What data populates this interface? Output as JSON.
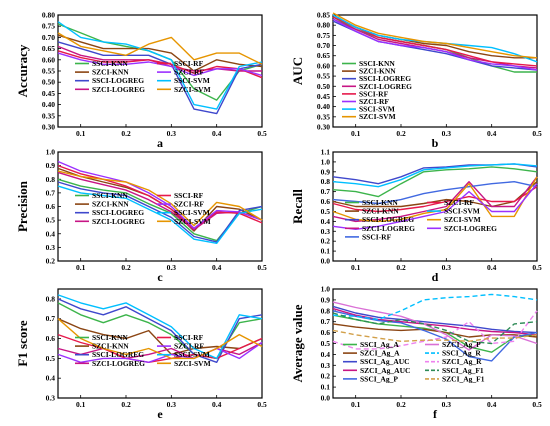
{
  "chart_data": [
    {
      "type": "line",
      "panel_letter": "a",
      "ylabel": "Accuracy",
      "x": [
        0.05,
        0.1,
        0.15,
        0.2,
        0.25,
        0.3,
        0.35,
        0.4,
        0.45,
        0.5
      ],
      "xlim": [
        0.05,
        0.5
      ],
      "ylim": [
        0.3,
        0.8
      ],
      "xticks": [
        "0.1",
        "0.2",
        "0.3",
        "0.4",
        "0.5"
      ],
      "yticks": [
        "0.30",
        "0.35",
        "0.40",
        "0.45",
        "0.50",
        "0.55",
        "0.60",
        "0.65",
        "0.70",
        "0.75",
        "0.80"
      ],
      "series": [
        {
          "name": "SSCI-KNN",
          "color": "#3cb44b",
          "values": [
            0.76,
            0.72,
            0.68,
            0.66,
            0.64,
            0.6,
            0.47,
            0.42,
            0.55,
            0.58
          ]
        },
        {
          "name": "SZCI-KNN",
          "color": "#8b4513",
          "values": [
            0.71,
            0.68,
            0.65,
            0.65,
            0.65,
            0.63,
            0.55,
            0.6,
            0.58,
            0.57
          ]
        },
        {
          "name": "SSCI-LOGREG",
          "color": "#3f48cc",
          "values": [
            0.68,
            0.65,
            0.62,
            0.62,
            0.62,
            0.58,
            0.38,
            0.36,
            0.56,
            0.58
          ]
        },
        {
          "name": "SZCI-LOGREG",
          "color": "#c71585",
          "values": [
            0.66,
            0.62,
            0.6,
            0.6,
            0.6,
            0.57,
            0.55,
            0.56,
            0.55,
            0.55
          ]
        },
        {
          "name": "SSCI-RF",
          "color": "#e6194b",
          "values": [
            0.64,
            0.61,
            0.59,
            0.59,
            0.6,
            0.58,
            0.54,
            0.57,
            0.56,
            0.52
          ]
        },
        {
          "name": "SZCI-RF",
          "color": "#9b30ff",
          "values": [
            0.63,
            0.6,
            0.58,
            0.58,
            0.59,
            0.57,
            0.53,
            0.56,
            0.56,
            0.53
          ]
        },
        {
          "name": "SSCI-SVM",
          "color": "#00bfff",
          "values": [
            0.77,
            0.7,
            0.68,
            0.67,
            0.64,
            0.6,
            0.4,
            0.38,
            0.57,
            0.59
          ]
        },
        {
          "name": "SZCI-SVM",
          "color": "#e69500",
          "values": [
            0.72,
            0.66,
            0.64,
            0.62,
            0.67,
            0.7,
            0.6,
            0.63,
            0.63,
            0.58
          ]
        }
      ]
    },
    {
      "type": "line",
      "panel_letter": "b",
      "ylabel": "AUC",
      "x": [
        0.05,
        0.1,
        0.15,
        0.2,
        0.25,
        0.3,
        0.35,
        0.4,
        0.45,
        0.5
      ],
      "xlim": [
        0.05,
        0.5
      ],
      "ylim": [
        0.3,
        0.85
      ],
      "xticks": [
        "0.1",
        "0.2",
        "0.3",
        "0.4",
        "0.5"
      ],
      "yticks": [
        "0.30",
        "0.35",
        "0.40",
        "0.45",
        "0.50",
        "0.55",
        "0.60",
        "0.65",
        "0.70",
        "0.75",
        "0.80",
        "0.85"
      ],
      "series": [
        {
          "name": "SSCI-KNN",
          "color": "#3cb44b",
          "values": [
            0.84,
            0.78,
            0.74,
            0.72,
            0.7,
            0.68,
            0.64,
            0.6,
            0.57,
            0.57
          ]
        },
        {
          "name": "SZCI-KNN",
          "color": "#8b4513",
          "values": [
            0.85,
            0.79,
            0.75,
            0.73,
            0.71,
            0.7,
            0.67,
            0.65,
            0.64,
            0.64
          ]
        },
        {
          "name": "SSCI-LOGREG",
          "color": "#3f48cc",
          "values": [
            0.82,
            0.77,
            0.72,
            0.7,
            0.68,
            0.66,
            0.63,
            0.6,
            0.59,
            0.58
          ]
        },
        {
          "name": "SZCI-LOGREG",
          "color": "#c71585",
          "values": [
            0.83,
            0.78,
            0.73,
            0.71,
            0.69,
            0.67,
            0.64,
            0.62,
            0.6,
            0.59
          ]
        },
        {
          "name": "SSCI-RF",
          "color": "#e6194b",
          "values": [
            0.84,
            0.79,
            0.74,
            0.72,
            0.7,
            0.68,
            0.65,
            0.62,
            0.61,
            0.6
          ]
        },
        {
          "name": "SZCI-RF",
          "color": "#9b30ff",
          "values": [
            0.83,
            0.77,
            0.72,
            0.7,
            0.69,
            0.67,
            0.63,
            0.61,
            0.6,
            0.58
          ]
        },
        {
          "name": "SSCI-SVM",
          "color": "#00bfff",
          "values": [
            0.85,
            0.79,
            0.75,
            0.73,
            0.72,
            0.71,
            0.7,
            0.69,
            0.66,
            0.62
          ]
        },
        {
          "name": "SZCI-SVM",
          "color": "#e69500",
          "values": [
            0.86,
            0.8,
            0.76,
            0.74,
            0.72,
            0.71,
            0.69,
            0.67,
            0.65,
            0.64
          ]
        }
      ]
    },
    {
      "type": "line",
      "panel_letter": "c",
      "ylabel": "Precision",
      "x": [
        0.05,
        0.1,
        0.15,
        0.2,
        0.25,
        0.3,
        0.35,
        0.4,
        0.45,
        0.5
      ],
      "xlim": [
        0.05,
        0.5
      ],
      "ylim": [
        0.2,
        1.0
      ],
      "xticks": [
        "0.1",
        "0.2",
        "0.3",
        "0.4",
        "0.5"
      ],
      "yticks": [
        "0.2",
        "0.3",
        "0.4",
        "0.5",
        "0.6",
        "0.7",
        "0.8",
        "0.9",
        "1.0"
      ],
      "series": [
        {
          "name": "SSCI-KNN",
          "color": "#3cb44b",
          "values": [
            0.8,
            0.75,
            0.72,
            0.7,
            0.62,
            0.55,
            0.4,
            0.35,
            0.55,
            0.6
          ]
        },
        {
          "name": "SZCI-KNN",
          "color": "#8b4513",
          "values": [
            0.88,
            0.82,
            0.78,
            0.74,
            0.68,
            0.58,
            0.42,
            0.6,
            0.58,
            0.5
          ]
        },
        {
          "name": "SSCI-LOGREG",
          "color": "#3f48cc",
          "values": [
            0.78,
            0.73,
            0.7,
            0.68,
            0.6,
            0.52,
            0.38,
            0.34,
            0.57,
            0.6
          ]
        },
        {
          "name": "SZCI-LOGREG",
          "color": "#c71585",
          "values": [
            0.85,
            0.8,
            0.76,
            0.72,
            0.65,
            0.56,
            0.43,
            0.55,
            0.56,
            0.5
          ]
        },
        {
          "name": "SSCI-RF",
          "color": "#e6194b",
          "values": [
            0.9,
            0.84,
            0.8,
            0.75,
            0.68,
            0.58,
            0.44,
            0.56,
            0.55,
            0.48
          ]
        },
        {
          "name": "SZCI-RF",
          "color": "#9b30ff",
          "values": [
            0.93,
            0.86,
            0.82,
            0.78,
            0.7,
            0.6,
            0.44,
            0.57,
            0.56,
            0.5
          ]
        },
        {
          "name": "SSCI-SVM",
          "color": "#00bfff",
          "values": [
            0.75,
            0.7,
            0.68,
            0.66,
            0.58,
            0.5,
            0.36,
            0.33,
            0.55,
            0.58
          ]
        },
        {
          "name": "SZCI-SVM",
          "color": "#e69500",
          "values": [
            0.86,
            0.82,
            0.8,
            0.78,
            0.72,
            0.62,
            0.46,
            0.63,
            0.6,
            0.5
          ]
        }
      ]
    },
    {
      "type": "line",
      "panel_letter": "d",
      "ylabel": "Recall",
      "x": [
        0.05,
        0.1,
        0.15,
        0.2,
        0.25,
        0.3,
        0.35,
        0.4,
        0.45,
        0.5
      ],
      "xlim": [
        0.05,
        0.5
      ],
      "ylim": [
        0.0,
        1.1
      ],
      "xticks": [
        "0.1",
        "0.2",
        "0.3",
        "0.4",
        "0.5"
      ],
      "yticks": [
        "0.0",
        "0.1",
        "0.2",
        "0.3",
        "0.4",
        "0.5",
        "0.6",
        "0.7",
        "0.8",
        "0.9",
        "1.0",
        "1.1"
      ],
      "series": [
        {
          "name": "SSCI-KNN",
          "color": "#3cb44b",
          "values": [
            0.72,
            0.7,
            0.65,
            0.78,
            0.9,
            0.92,
            0.93,
            0.95,
            0.93,
            0.9
          ]
        },
        {
          "name": "SZCI-KNN",
          "color": "#8b4513",
          "values": [
            0.6,
            0.55,
            0.55,
            0.55,
            0.58,
            0.62,
            0.6,
            0.55,
            0.6,
            0.8
          ]
        },
        {
          "name": "SSCI-LOGREG",
          "color": "#3f48cc",
          "values": [
            0.85,
            0.82,
            0.78,
            0.85,
            0.94,
            0.95,
            0.97,
            0.97,
            0.98,
            0.95
          ]
        },
        {
          "name": "SZCI-LOGREG",
          "color": "#c71585",
          "values": [
            0.45,
            0.4,
            0.42,
            0.45,
            0.5,
            0.55,
            0.8,
            0.55,
            0.55,
            0.85
          ]
        },
        {
          "name": "SSCI-RF",
          "color": "#4169e1",
          "values": [
            0.62,
            0.6,
            0.58,
            0.62,
            0.68,
            0.72,
            0.75,
            0.78,
            0.8,
            0.75
          ]
        },
        {
          "name": "SZCI-RF",
          "color": "#e6194b",
          "values": [
            0.58,
            0.52,
            0.5,
            0.52,
            0.55,
            0.6,
            0.65,
            0.6,
            0.6,
            0.75
          ]
        },
        {
          "name": "SSCI-SVM",
          "color": "#00bfff",
          "values": [
            0.8,
            0.78,
            0.75,
            0.82,
            0.92,
            0.94,
            0.96,
            0.97,
            0.98,
            0.96
          ]
        },
        {
          "name": "SZCI-SVM",
          "color": "#e69500",
          "values": [
            0.5,
            0.42,
            0.4,
            0.42,
            0.48,
            0.52,
            0.78,
            0.45,
            0.45,
            0.85
          ]
        },
        {
          "name": "SZCI-LOGREG",
          "color": "#9b30ff",
          "values": [
            0.35,
            0.32,
            0.35,
            0.4,
            0.45,
            0.5,
            0.7,
            0.5,
            0.5,
            0.78
          ]
        }
      ]
    },
    {
      "type": "line",
      "panel_letter": "e",
      "ylabel": "F1 score",
      "x": [
        0.05,
        0.1,
        0.15,
        0.2,
        0.25,
        0.3,
        0.35,
        0.4,
        0.45,
        0.5
      ],
      "xlim": [
        0.05,
        0.5
      ],
      "ylim": [
        0.3,
        0.85
      ],
      "xticks": [
        "0.1",
        "0.2",
        "0.3",
        "0.4",
        "0.5"
      ],
      "yticks": [
        "0.3",
        "0.4",
        "0.5",
        "0.6",
        "0.7",
        "0.8"
      ],
      "series": [
        {
          "name": "SSCI-KNN",
          "color": "#3cb44b",
          "values": [
            0.78,
            0.72,
            0.68,
            0.72,
            0.68,
            0.62,
            0.52,
            0.5,
            0.68,
            0.7
          ]
        },
        {
          "name": "SZCI-KNN",
          "color": "#8b4513",
          "values": [
            0.7,
            0.65,
            0.62,
            0.6,
            0.64,
            0.52,
            0.55,
            0.56,
            0.55,
            0.6
          ]
        },
        {
          "name": "SSCI-LOGREG",
          "color": "#3f48cc",
          "values": [
            0.8,
            0.75,
            0.72,
            0.76,
            0.7,
            0.64,
            0.52,
            0.48,
            0.7,
            0.72
          ]
        },
        {
          "name": "SZCI-LOGREG",
          "color": "#c71585",
          "values": [
            0.55,
            0.52,
            0.55,
            0.5,
            0.52,
            0.55,
            0.5,
            0.55,
            0.52,
            0.58
          ]
        },
        {
          "name": "SSCI-RF",
          "color": "#e6194b",
          "values": [
            0.62,
            0.58,
            0.55,
            0.5,
            0.48,
            0.5,
            0.52,
            0.5,
            0.55,
            0.6
          ]
        },
        {
          "name": "SZCI-RF",
          "color": "#9b30ff",
          "values": [
            0.52,
            0.48,
            0.5,
            0.5,
            0.48,
            0.52,
            0.5,
            0.55,
            0.5,
            0.58
          ]
        },
        {
          "name": "SSCI-SVM",
          "color": "#00bfff",
          "values": [
            0.82,
            0.78,
            0.75,
            0.78,
            0.72,
            0.66,
            0.55,
            0.5,
            0.72,
            0.7
          ]
        },
        {
          "name": "SZCI-SVM",
          "color": "#e69500",
          "values": [
            0.7,
            0.6,
            0.55,
            0.52,
            0.55,
            0.5,
            0.5,
            0.55,
            0.62,
            0.56
          ]
        }
      ]
    },
    {
      "type": "line",
      "panel_letter": "f",
      "ylabel": "Average value",
      "x": [
        0.05,
        0.1,
        0.15,
        0.2,
        0.25,
        0.3,
        0.35,
        0.4,
        0.45,
        0.5
      ],
      "xlim": [
        0.05,
        0.5
      ],
      "ylim": [
        0.0,
        1.0
      ],
      "xticks": [
        "0.1",
        "0.2",
        "0.3",
        "0.4",
        "0.5"
      ],
      "yticks": [
        "0.0",
        "0.1",
        "0.2",
        "0.3",
        "0.4",
        "0.5",
        "0.6",
        "0.7",
        "0.8",
        "0.9",
        "1.0"
      ],
      "series": [
        {
          "name": "SSCI_Ag_A",
          "color": "#3cb44b",
          "dash": false,
          "values": [
            0.76,
            0.72,
            0.68,
            0.66,
            0.64,
            0.6,
            0.47,
            0.42,
            0.56,
            0.58
          ]
        },
        {
          "name": "SZCI_Ag_A",
          "color": "#8b4513",
          "dash": false,
          "values": [
            0.68,
            0.65,
            0.63,
            0.62,
            0.63,
            0.6,
            0.56,
            0.58,
            0.58,
            0.56
          ]
        },
        {
          "name": "SSCI_Ag_AUC",
          "color": "#3f48cc",
          "dash": false,
          "values": [
            0.84,
            0.78,
            0.74,
            0.72,
            0.7,
            0.68,
            0.66,
            0.63,
            0.61,
            0.6
          ]
        },
        {
          "name": "SZCI_Ag_AUC",
          "color": "#c71585",
          "dash": false,
          "values": [
            0.82,
            0.76,
            0.72,
            0.7,
            0.68,
            0.66,
            0.63,
            0.61,
            0.6,
            0.58
          ]
        },
        {
          "name": "SSCI_Ag_P",
          "color": "#4169e1",
          "dash": false,
          "values": [
            0.8,
            0.75,
            0.71,
            0.69,
            0.62,
            0.54,
            0.38,
            0.34,
            0.56,
            0.6
          ]
        },
        {
          "name": "SZCI_Ag_P",
          "color": "#da70d6",
          "dash": false,
          "values": [
            0.88,
            0.83,
            0.79,
            0.75,
            0.68,
            0.58,
            0.44,
            0.58,
            0.57,
            0.5
          ]
        },
        {
          "name": "SSCI_Ag_R",
          "color": "#00bfff",
          "dash": true,
          "values": [
            0.76,
            0.75,
            0.72,
            0.8,
            0.9,
            0.92,
            0.93,
            0.95,
            0.93,
            0.9
          ]
        },
        {
          "name": "SZCI_Ag_R",
          "color": "#ee82ee",
          "dash": true,
          "values": [
            0.52,
            0.45,
            0.45,
            0.48,
            0.52,
            0.56,
            0.7,
            0.5,
            0.52,
            0.8
          ]
        },
        {
          "name": "SSCI_Ag_F1",
          "color": "#2e8b57",
          "dash": true,
          "values": [
            0.78,
            0.72,
            0.68,
            0.72,
            0.68,
            0.62,
            0.52,
            0.5,
            0.68,
            0.7
          ]
        },
        {
          "name": "SZCI_Ag_F1",
          "color": "#d2a04a",
          "dash": true,
          "values": [
            0.62,
            0.58,
            0.55,
            0.52,
            0.53,
            0.53,
            0.52,
            0.55,
            0.55,
            0.58
          ]
        }
      ]
    }
  ]
}
